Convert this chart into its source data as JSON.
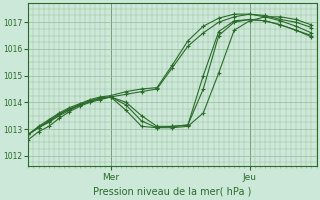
{
  "bg_color": "#cce8d8",
  "grid_color": "#99bb99",
  "line_color": "#2a6b2a",
  "marker_color": "#2a6b2a",
  "title": "Pression niveau de la mer( hPa )",
  "ylabel_ticks": [
    1012,
    1013,
    1014,
    1015,
    1016,
    1017
  ],
  "xlim": [
    0,
    56
  ],
  "ylim": [
    1011.6,
    1017.7
  ],
  "mer_x": 16,
  "jeu_x": 43,
  "series": [
    {
      "x": [
        0,
        2,
        4,
        6,
        8,
        10,
        12,
        14,
        16,
        19,
        22,
        25,
        28,
        31,
        34,
        37,
        40,
        43,
        46,
        49,
        52,
        55
      ],
      "y": [
        1012.6,
        1012.9,
        1013.1,
        1013.4,
        1013.65,
        1013.85,
        1014.0,
        1014.1,
        1014.2,
        1014.3,
        1014.4,
        1014.5,
        1015.3,
        1016.1,
        1016.6,
        1017.0,
        1017.2,
        1017.3,
        1017.25,
        1017.1,
        1017.0,
        1016.8
      ],
      "marker": "+"
    },
    {
      "x": [
        0,
        2,
        4,
        6,
        8,
        10,
        12,
        14,
        16,
        19,
        22,
        25,
        28,
        31,
        34,
        37,
        40,
        43,
        46,
        49,
        52,
        55
      ],
      "y": [
        1012.8,
        1013.05,
        1013.25,
        1013.5,
        1013.7,
        1013.9,
        1014.05,
        1014.15,
        1014.2,
        1013.9,
        1013.3,
        1013.05,
        1013.05,
        1013.1,
        1013.6,
        1015.1,
        1016.7,
        1017.05,
        1017.2,
        1017.2,
        1017.1,
        1016.9
      ],
      "marker": "+"
    },
    {
      "x": [
        0,
        2,
        4,
        6,
        8,
        10,
        12,
        14,
        16,
        19,
        22,
        25,
        28,
        31,
        34,
        37,
        40,
        43,
        46,
        49,
        52,
        55
      ],
      "y": [
        1012.8,
        1013.05,
        1013.3,
        1013.55,
        1013.75,
        1013.9,
        1014.05,
        1014.15,
        1014.2,
        1013.7,
        1013.1,
        1013.05,
        1013.1,
        1013.15,
        1015.0,
        1016.65,
        1017.05,
        1017.1,
        1017.05,
        1016.9,
        1016.7,
        1016.5
      ],
      "marker": "+"
    },
    {
      "x": [
        0,
        2,
        4,
        6,
        8,
        10,
        12,
        14,
        16,
        19,
        22,
        25,
        28,
        31,
        34,
        37,
        40,
        43,
        46,
        49,
        52,
        55
      ],
      "y": [
        1012.8,
        1013.1,
        1013.35,
        1013.6,
        1013.8,
        1013.95,
        1014.1,
        1014.2,
        1014.25,
        1014.4,
        1014.5,
        1014.55,
        1015.4,
        1016.3,
        1016.85,
        1017.15,
        1017.3,
        1017.3,
        1017.2,
        1017.05,
        1016.85,
        1016.6
      ],
      "marker": "+"
    },
    {
      "x": [
        0,
        2,
        4,
        6,
        8,
        10,
        12,
        14,
        16,
        19,
        22,
        25,
        28,
        31,
        34,
        37,
        40,
        43,
        46,
        49,
        52,
        55
      ],
      "y": [
        1012.8,
        1013.05,
        1013.3,
        1013.55,
        1013.75,
        1013.9,
        1014.05,
        1014.15,
        1014.2,
        1014.0,
        1013.5,
        1013.1,
        1013.1,
        1013.15,
        1014.5,
        1016.5,
        1017.0,
        1017.1,
        1017.05,
        1016.9,
        1016.7,
        1016.45
      ],
      "marker": "+"
    }
  ]
}
